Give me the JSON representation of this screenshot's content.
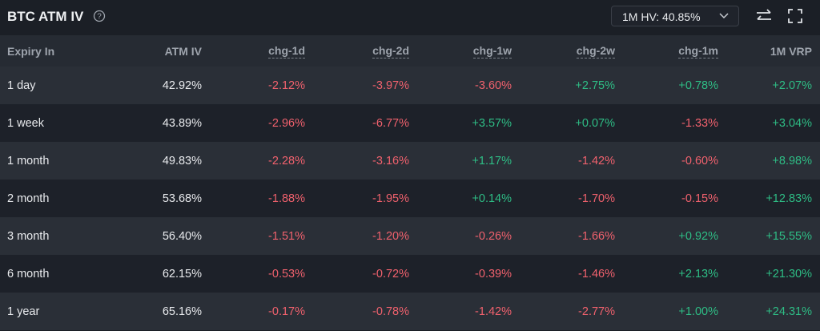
{
  "header": {
    "title": "BTC ATM IV",
    "hv_selector": "1M HV: 40.85%"
  },
  "table": {
    "columns": [
      "Expiry In",
      "ATM IV",
      "chg-1d",
      "chg-2d",
      "chg-1w",
      "chg-2w",
      "chg-1m",
      "1M VRP"
    ],
    "rows": [
      [
        "1 day",
        "42.92%",
        "-2.12%",
        "-3.97%",
        "-3.60%",
        "+2.75%",
        "+0.78%",
        "+2.07%"
      ],
      [
        "1 week",
        "43.89%",
        "-2.96%",
        "-6.77%",
        "+3.57%",
        "+0.07%",
        "-1.33%",
        "+3.04%"
      ],
      [
        "1 month",
        "49.83%",
        "-2.28%",
        "-3.16%",
        "+1.17%",
        "-1.42%",
        "-0.60%",
        "+8.98%"
      ],
      [
        "2 month",
        "53.68%",
        "-1.88%",
        "-1.95%",
        "+0.14%",
        "-1.70%",
        "-0.15%",
        "+12.83%"
      ],
      [
        "3 month",
        "56.40%",
        "-1.51%",
        "-1.20%",
        "-0.26%",
        "-1.66%",
        "+0.92%",
        "+15.55%"
      ],
      [
        "6 month",
        "62.15%",
        "-0.53%",
        "-0.72%",
        "-0.39%",
        "-1.46%",
        "+2.13%",
        "+21.30%"
      ],
      [
        "1 year",
        "65.16%",
        "-0.17%",
        "-0.78%",
        "-1.42%",
        "-2.77%",
        "+1.00%",
        "+24.31%"
      ]
    ]
  }
}
